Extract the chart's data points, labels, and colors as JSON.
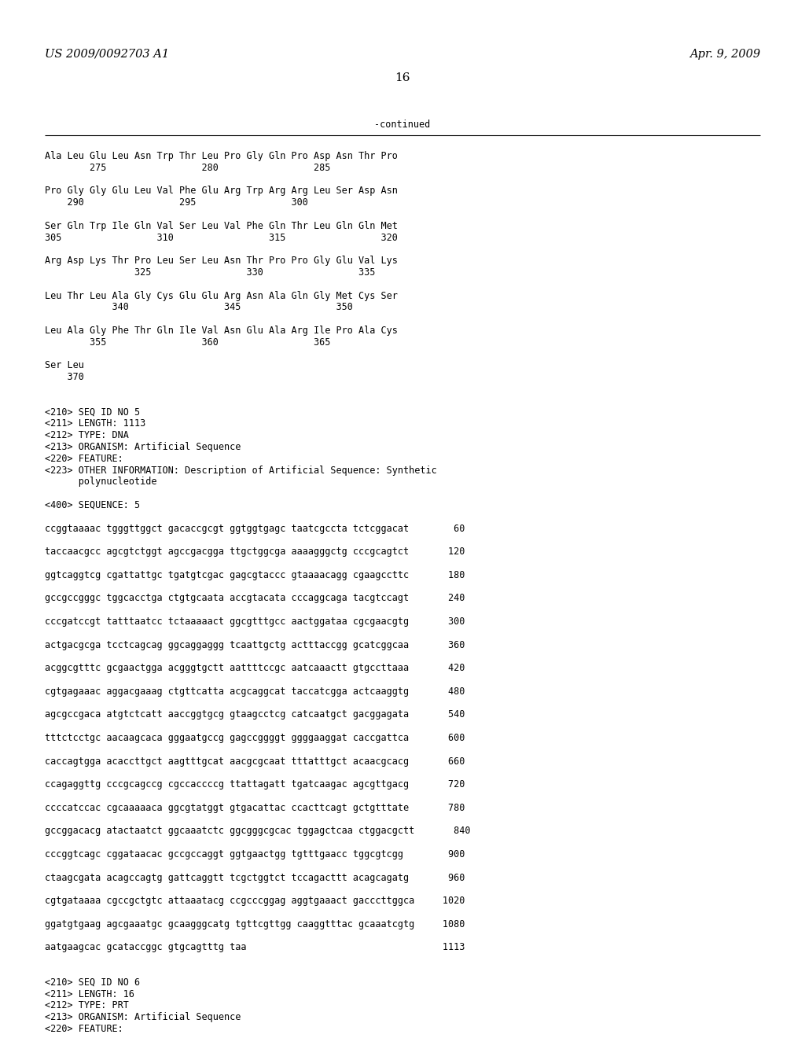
{
  "header_left": "US 2009/0092703 A1",
  "header_right": "Apr. 9, 2009",
  "page_number": "16",
  "continued_label": "-continued",
  "background_color": "#ffffff",
  "text_color": "#000000",
  "font_size_header": 10.5,
  "font_size_body": 8.5,
  "font_size_page": 11,
  "sequence_lines": [
    "Ala Leu Glu Leu Asn Trp Thr Leu Pro Gly Gln Pro Asp Asn Thr Pro",
    "        275                 280                 285",
    "",
    "Pro Gly Gly Glu Leu Val Phe Glu Arg Trp Arg Arg Leu Ser Asp Asn",
    "    290                 295                 300",
    "",
    "Ser Gln Trp Ile Gln Val Ser Leu Val Phe Gln Thr Leu Gln Gln Met",
    "305                 310                 315                 320",
    "",
    "Arg Asp Lys Thr Pro Leu Ser Leu Asn Thr Pro Pro Gly Glu Val Lys",
    "                325                 330                 335",
    "",
    "Leu Thr Leu Ala Gly Cys Glu Glu Arg Asn Ala Gln Gly Met Cys Ser",
    "            340                 345                 350",
    "",
    "Leu Ala Gly Phe Thr Gln Ile Val Asn Glu Ala Arg Ile Pro Ala Cys",
    "        355                 360                 365",
    "",
    "Ser Leu",
    "    370",
    "",
    "",
    "<210> SEQ ID NO 5",
    "<211> LENGTH: 1113",
    "<212> TYPE: DNA",
    "<213> ORGANISM: Artificial Sequence",
    "<220> FEATURE:",
    "<223> OTHER INFORMATION: Description of Artificial Sequence: Synthetic",
    "      polynucleotide",
    "",
    "<400> SEQUENCE: 5",
    "",
    "ccggtaaaac tgggttggct gacaccgcgt ggtggtgagc taatcgccta tctcggacat        60",
    "",
    "taccaacgcc agcgtctggt agccgacgga ttgctggcga aaaagggctg cccgcagtct       120",
    "",
    "ggtcaggtcg cgattattgc tgatgtcgac gagcgtaccc gtaaaacagg cgaagccttc       180",
    "",
    "gccgccgggc tggcacctga ctgtgcaata accgtacata cccaggcaga tacgtccagt       240",
    "",
    "cccgatccgt tatttaatcc tctaaaaact ggcgtttgcc aactggataa cgcgaacgtg       300",
    "",
    "actgacgcga tcctcagcag ggcaggaggg tcaattgctg actttaccgg gcatcggcaa       360",
    "",
    "acggcgtttc gcgaactgga acgggtgctt aattttccgc aatcaaactt gtgccttaaa       420",
    "",
    "cgtgagaaac aggacgaaag ctgttcatta acgcaggcat taccatcgga actcaaggtg       480",
    "",
    "agcgccgaca atgtctcatt aaccggtgcg gtaagcctcg catcaatgct gacggagata       540",
    "",
    "tttctcctgc aacaagcaca gggaatgccg gagccggggt ggggaaggat caccgattca       600",
    "",
    "caccagtgga acaccttgct aagtttgcat aacgcgcaat tttatttgct acaacgcacg       660",
    "",
    "ccagaggttg cccgcagccg cgccaccccg ttattagatt tgatcaagac agcgttgacg       720",
    "",
    "ccccatccac cgcaaaaaca ggcgtatggt gtgacattac ccacttcagt gctgtttate       780",
    "",
    "gccggacacg atactaatct ggcaaatctc ggcgggcgcac tggagctcaa ctggacgctt       840",
    "",
    "cccggtcagc cggataacac gccgccaggt ggtgaactgg tgtttgaacc tggcgtcgg        900",
    "",
    "ctaagcgata acagccagtg gattcaggtt tcgctggtct tccagacttt acagcagatg       960",
    "",
    "cgtgataaaa cgccgctgtc attaaatacg ccgcccggag aggtgaaact gacccttggca     1020",
    "",
    "ggatgtgaag agcgaaatgc gcaagggcatg tgttcgttgg caaggtttac gcaaatcgtg     1080",
    "",
    "aatgaagcac gcataccggc gtgcagtttg taa                                   1113",
    "",
    "",
    "<210> SEQ ID NO 6",
    "<211> LENGTH: 16",
    "<212> TYPE: PRT",
    "<213> ORGANISM: Artificial Sequence",
    "<220> FEATURE:"
  ]
}
